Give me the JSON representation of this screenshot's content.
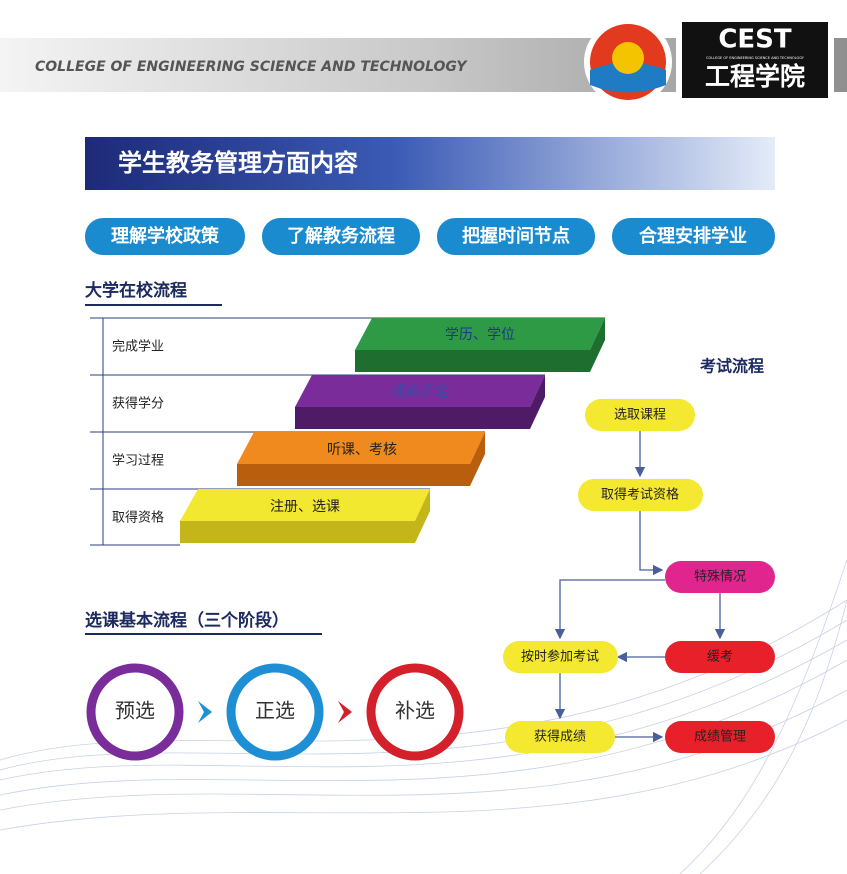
{
  "header": {
    "college": "COLLEGE OF ENGINEERING SCIENCE AND TECHNOLOGY",
    "logo_mark": "CEST",
    "logo_subtitle": "COLLEGE OF ENGINEERING SCIENCE AND TECHNOLOGY",
    "logo_name": "工程学院"
  },
  "banner": {
    "title": "学生教务管理方面内容"
  },
  "pills": [
    "理解学校政策",
    "了解教务流程",
    "把握时间节点",
    "合理安排学业"
  ],
  "campus_process": {
    "title": "大学在校流程",
    "stages": [
      "完成学业",
      "获得学分",
      "学习过程",
      "取得资格"
    ],
    "steps": [
      "学历、学位",
      "成绩评定",
      "听课、考核",
      "注册、选课"
    ]
  },
  "exam_process": {
    "title": "考试流程",
    "nodes": [
      "选取课程",
      "取得考试资格",
      "特殊情况",
      "缓考",
      "按时参加考试",
      "获得成绩",
      "成绩管理"
    ]
  },
  "course_selection": {
    "title": "选课基本流程（三个阶段）",
    "phases": [
      "预选",
      "正选",
      "补选"
    ]
  }
}
